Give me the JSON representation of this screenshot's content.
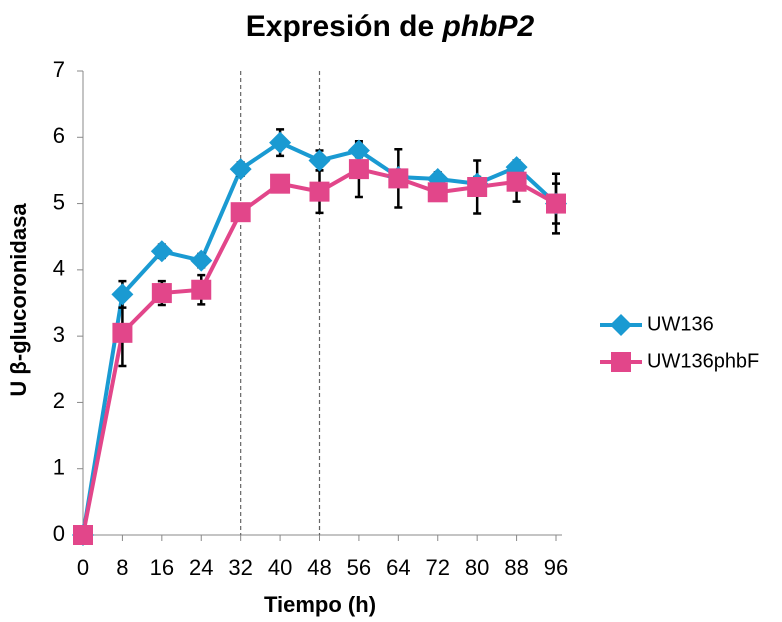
{
  "chart_data": {
    "type": "line",
    "title": {
      "text": "Expresión de",
      "italic": "phbP2"
    },
    "xlabel": "Tiempo (h)",
    "ylabel": "U β-glucoronidasa",
    "x": [
      0,
      8,
      16,
      24,
      32,
      40,
      48,
      56,
      64,
      72,
      80,
      88,
      96
    ],
    "xlim": [
      0,
      96
    ],
    "xticks": [
      0,
      8,
      16,
      24,
      32,
      40,
      48,
      56,
      64,
      72,
      80,
      88,
      96
    ],
    "ylim": [
      0,
      7
    ],
    "yticks": [
      0,
      1,
      2,
      3,
      4,
      5,
      6,
      7
    ],
    "vlines": [
      32,
      48
    ],
    "legend": "right",
    "series": [
      {
        "name": "UW136",
        "color": "#1a9ad2",
        "marker": "diamond",
        "values": [
          0,
          3.63,
          4.28,
          4.14,
          5.52,
          5.92,
          5.65,
          5.8,
          5.4,
          5.37,
          5.3,
          5.55,
          5.0
        ],
        "errors": [
          0,
          0.2,
          0.1,
          0.1,
          0.1,
          0.2,
          0.15,
          0.1,
          0.1,
          0.1,
          0.1,
          0.1,
          0.3
        ]
      },
      {
        "name": "UW136phbF",
        "color": "#e2468a",
        "marker": "square",
        "values": [
          0,
          3.05,
          3.65,
          3.7,
          4.87,
          5.3,
          5.18,
          5.52,
          5.38,
          5.17,
          5.25,
          5.33,
          5.0
        ],
        "errors": [
          0,
          0.5,
          0.18,
          0.22,
          0.1,
          0.1,
          0.32,
          0.42,
          0.44,
          0.1,
          0.4,
          0.3,
          0.45
        ]
      }
    ]
  }
}
